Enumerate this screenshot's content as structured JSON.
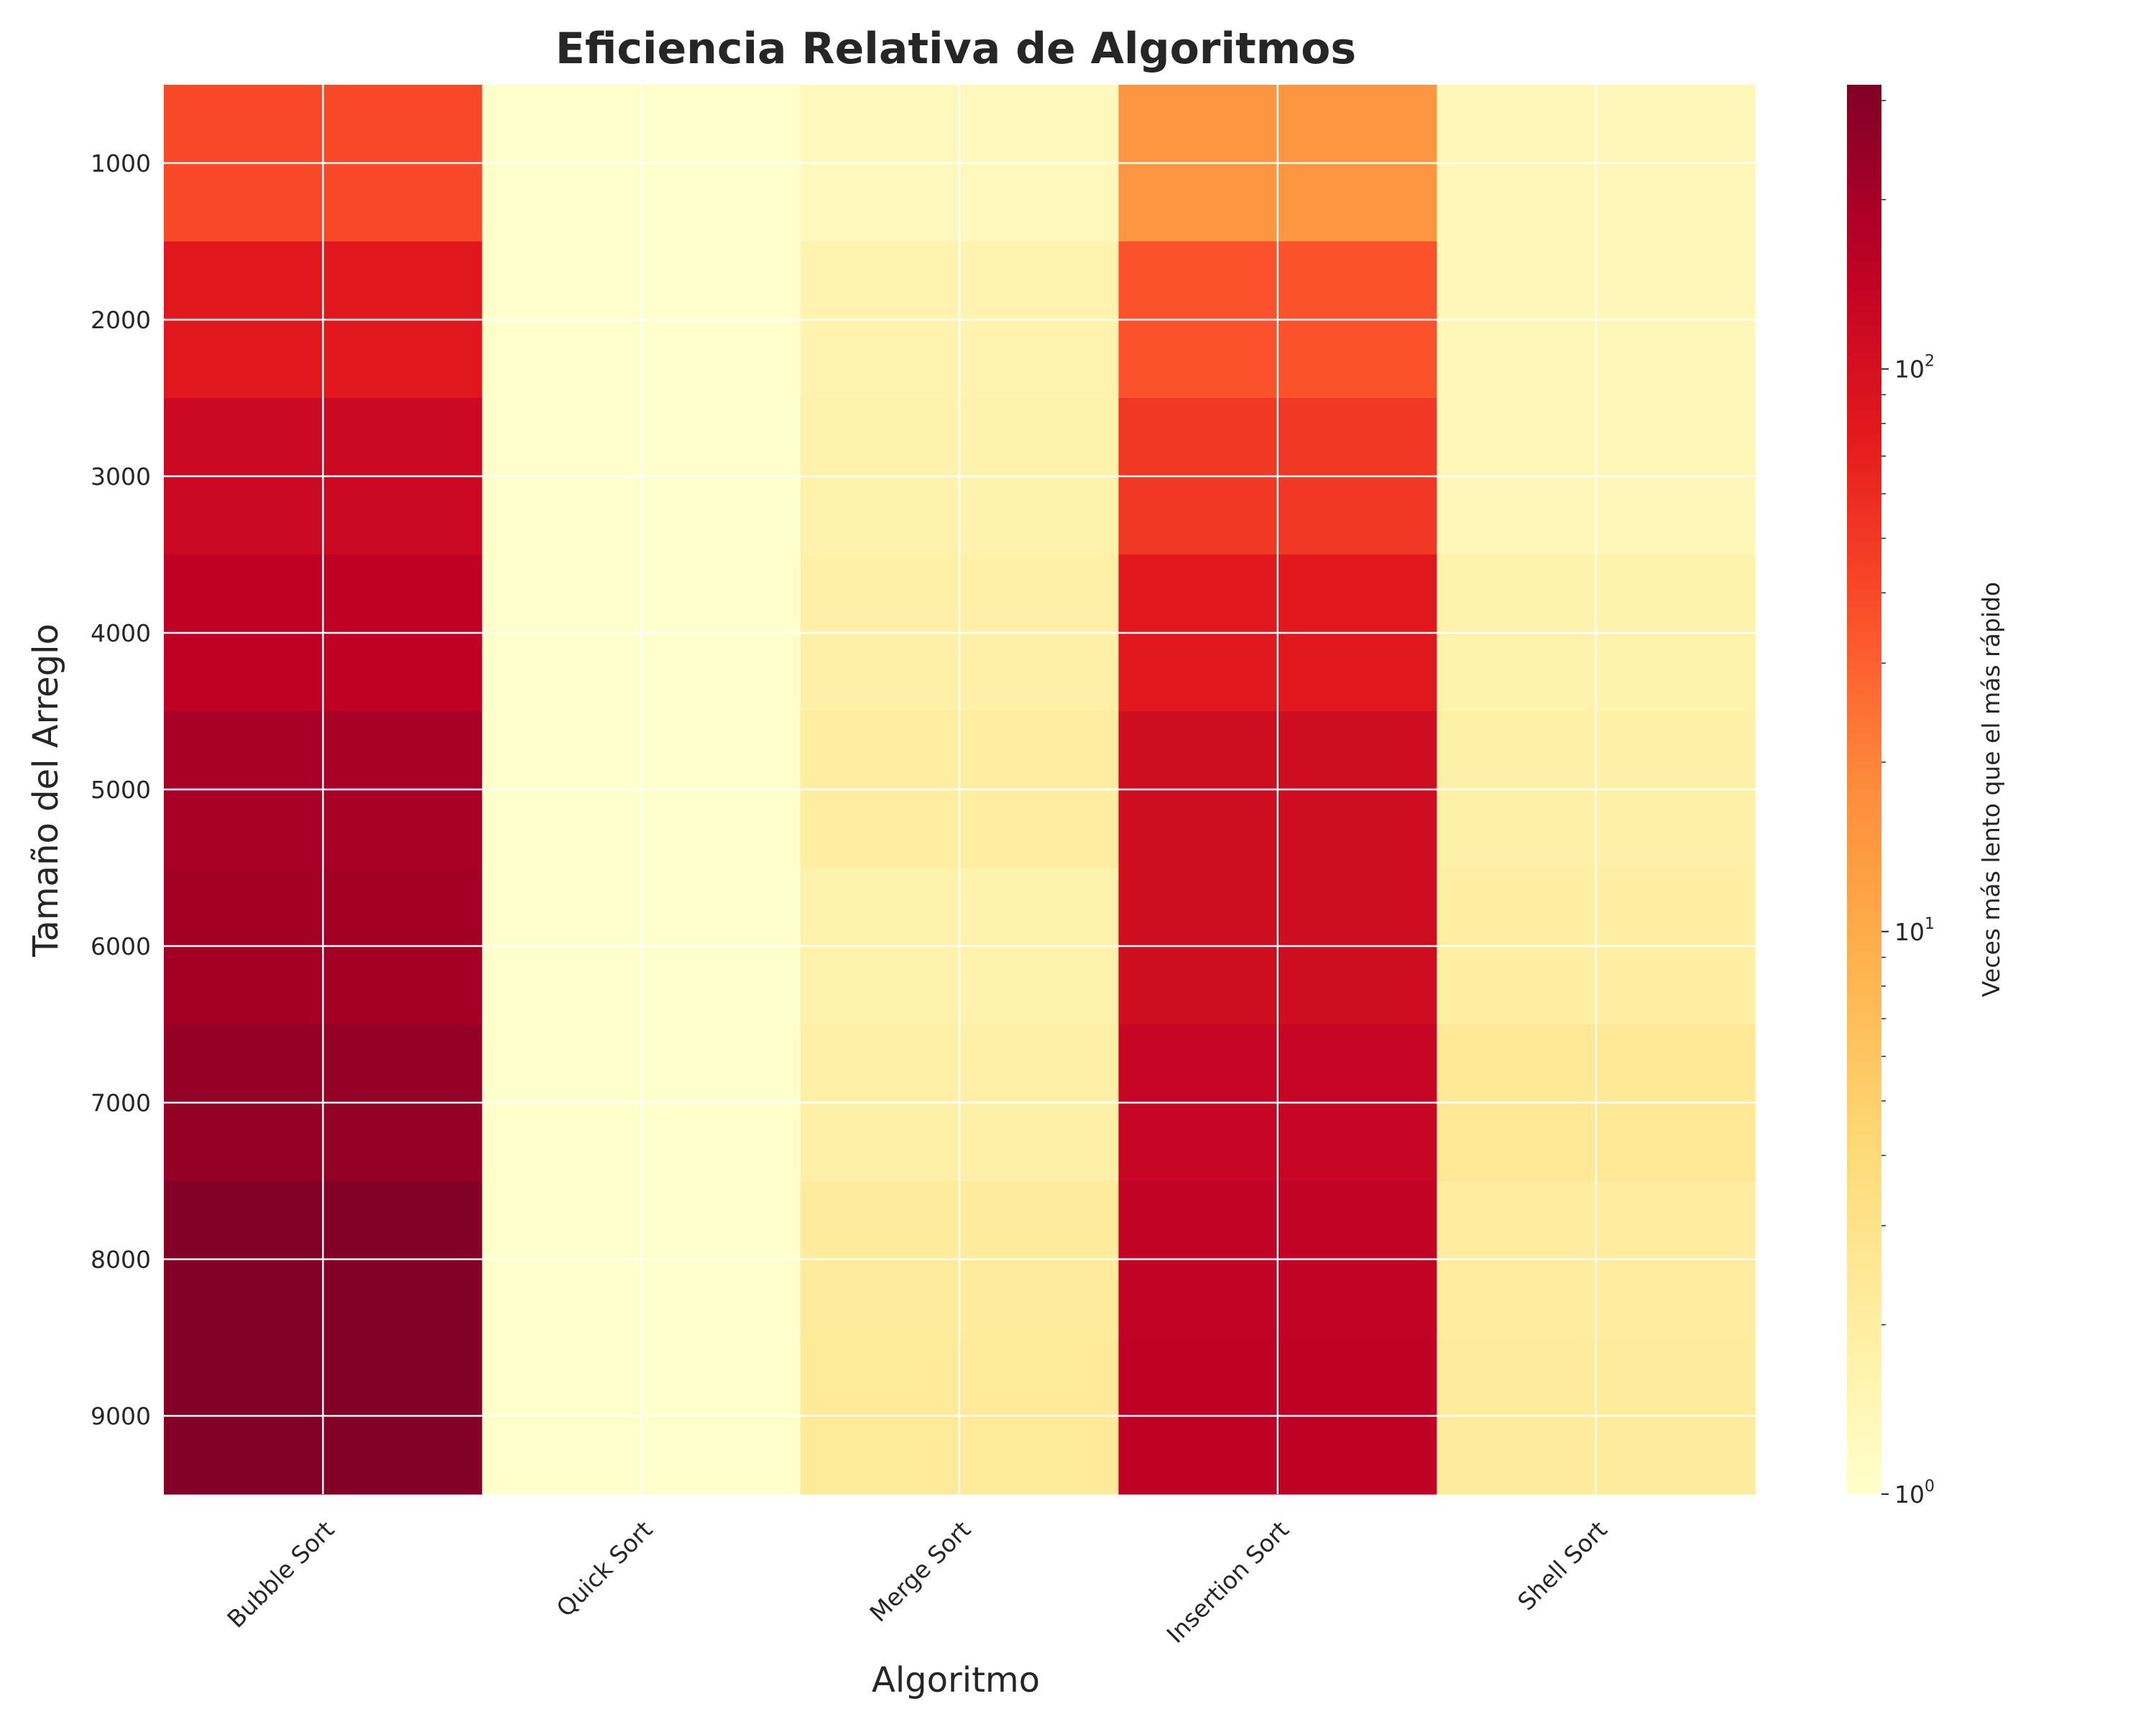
{
  "chart_data": {
    "type": "heatmap",
    "title": "Eficiencia Relativa de Algoritmos",
    "xlabel": "Algoritmo",
    "ylabel": "Tamaño del Arreglo",
    "categories": [
      "Bubble Sort",
      "Quick Sort",
      "Merge Sort",
      "Insertion Sort",
      "Shell Sort"
    ],
    "y_values": [
      1000,
      2000,
      3000,
      4000,
      5000,
      6000,
      7000,
      8000,
      9000
    ],
    "matrix": [
      [
        40,
        1.0,
        1.3,
        15,
        1.4
      ],
      [
        80,
        1.0,
        1.6,
        35,
        1.4
      ],
      [
        120,
        1.0,
        1.7,
        50,
        1.4
      ],
      [
        150,
        1.0,
        1.8,
        80,
        1.7
      ],
      [
        200,
        1.0,
        2.0,
        110,
        1.8
      ],
      [
        210,
        1.0,
        1.7,
        110,
        1.9
      ],
      [
        250,
        1.0,
        1.8,
        130,
        2.4
      ],
      [
        310,
        1.0,
        2.2,
        145,
        2.1
      ],
      [
        310,
        1.0,
        2.3,
        150,
        2.2
      ]
    ],
    "colorbar": {
      "label": "Veces más lento que el más rápido",
      "scale": "log",
      "min": 1,
      "max": 320,
      "ticks": [
        {
          "base": "10",
          "exp": "0",
          "value": 1
        },
        {
          "base": "10",
          "exp": "1",
          "value": 10
        },
        {
          "base": "10",
          "exp": "2",
          "value": 100
        }
      ],
      "colormap": "YlOrRd"
    },
    "grid": true
  }
}
